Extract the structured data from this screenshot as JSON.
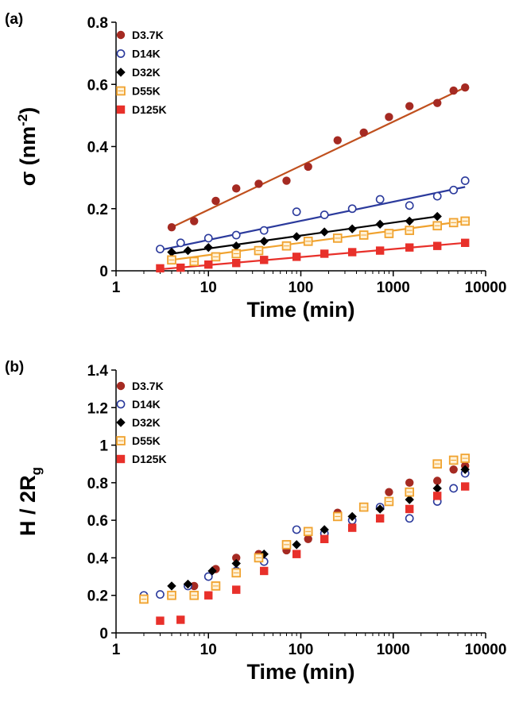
{
  "chart_data": [
    {
      "type": "scatter",
      "panel_label": "(a)",
      "xlabel": "Time (min)",
      "ylabel_prefix": "σ (nm",
      "ylabel_sup": "-2",
      "ylabel_suffix": ")",
      "xscale": "log",
      "xlim": [
        1,
        10000
      ],
      "ylim": [
        0,
        0.8
      ],
      "xticks": [
        "1",
        "10",
        "100",
        "1000",
        "10000"
      ],
      "yticks": [
        "0",
        "0.2",
        "0.4",
        "0.6",
        "0.8"
      ],
      "grid": false,
      "legend_position": "top-left",
      "series": [
        {
          "name": "D3.7K",
          "marker": "circle-filled",
          "color": "#a52a22",
          "line_color": "#c0501e",
          "x": [
            4,
            7,
            12,
            20,
            35,
            70,
            120,
            250,
            480,
            900,
            1500,
            3000,
            4500,
            6000
          ],
          "y": [
            0.14,
            0.16,
            0.225,
            0.265,
            0.28,
            0.29,
            0.335,
            0.42,
            0.445,
            0.495,
            0.53,
            0.54,
            0.58,
            0.59
          ],
          "fit_x": [
            4,
            6000
          ],
          "fit_y": [
            0.14,
            0.59
          ]
        },
        {
          "name": "D14K",
          "marker": "circle-open",
          "color": "#2b3a9c",
          "line_color": "#2b3a9c",
          "x": [
            3,
            5,
            10,
            20,
            40,
            90,
            180,
            360,
            720,
            1500,
            3000,
            4500,
            6000
          ],
          "y": [
            0.07,
            0.09,
            0.105,
            0.115,
            0.13,
            0.19,
            0.18,
            0.2,
            0.23,
            0.21,
            0.24,
            0.26,
            0.29
          ],
          "fit_x": [
            3,
            6000
          ],
          "fit_y": [
            0.067,
            0.27
          ]
        },
        {
          "name": "D32K",
          "marker": "diamond",
          "color": "#000000",
          "line_color": "#000000",
          "x": [
            4,
            6,
            10,
            20,
            40,
            90,
            180,
            360,
            720,
            1500,
            3000
          ],
          "y": [
            0.06,
            0.065,
            0.075,
            0.08,
            0.095,
            0.11,
            0.125,
            0.135,
            0.15,
            0.16,
            0.175
          ],
          "fit_x": [
            4,
            3000
          ],
          "fit_y": [
            0.055,
            0.175
          ]
        },
        {
          "name": "D55K",
          "marker": "square-open",
          "color": "#f0a22e",
          "line_color": "#f0a22e",
          "x": [
            4,
            7,
            12,
            20,
            35,
            70,
            120,
            250,
            480,
            900,
            1500,
            3000,
            4500,
            6000
          ],
          "y": [
            0.035,
            0.03,
            0.045,
            0.055,
            0.065,
            0.08,
            0.095,
            0.105,
            0.115,
            0.12,
            0.13,
            0.145,
            0.155,
            0.16
          ],
          "fit_x": [
            4,
            6000
          ],
          "fit_y": [
            0.035,
            0.16
          ]
        },
        {
          "name": "D125K",
          "marker": "square-filled",
          "color": "#e8302a",
          "line_color": "#e8302a",
          "x": [
            3,
            5,
            10,
            20,
            40,
            90,
            180,
            360,
            720,
            1500,
            3000,
            6000
          ],
          "y": [
            0.008,
            0.01,
            0.02,
            0.025,
            0.035,
            0.045,
            0.055,
            0.06,
            0.065,
            0.075,
            0.08,
            0.09
          ],
          "fit_x": [
            3,
            6000
          ],
          "fit_y": [
            0.005,
            0.09
          ]
        }
      ]
    },
    {
      "type": "scatter",
      "panel_label": "(b)",
      "xlabel": "Time (min)",
      "ylabel_prefix": "H / 2R",
      "ylabel_sub": "g",
      "xscale": "log",
      "xlim": [
        1,
        10000
      ],
      "ylim": [
        0,
        1.4
      ],
      "xticks": [
        "1",
        "10",
        "100",
        "1000",
        "10000"
      ],
      "yticks": [
        "0",
        "0.2",
        "0.4",
        "0.6",
        "0.8",
        "1",
        "1.2",
        "1.4"
      ],
      "grid": false,
      "legend_position": "top-left",
      "series": [
        {
          "name": "D3.7K",
          "marker": "circle-filled",
          "color": "#a52a22",
          "x": [
            7,
            12,
            20,
            35,
            70,
            120,
            250,
            480,
            900,
            1500,
            3000,
            4500,
            6000
          ],
          "y": [
            0.25,
            0.34,
            0.4,
            0.42,
            0.44,
            0.5,
            0.64,
            0.67,
            0.75,
            0.8,
            0.81,
            0.87,
            0.89
          ]
        },
        {
          "name": "D14K",
          "marker": "circle-open",
          "color": "#2b3a9c",
          "x": [
            2,
            3,
            6,
            10,
            20,
            40,
            90,
            180,
            360,
            720,
            1500,
            3000,
            4500,
            6000
          ],
          "y": [
            0.2,
            0.205,
            0.25,
            0.3,
            0.33,
            0.38,
            0.55,
            0.53,
            0.6,
            0.67,
            0.61,
            0.7,
            0.77,
            0.85
          ]
        },
        {
          "name": "D32K",
          "marker": "diamond",
          "color": "#000000",
          "x": [
            4,
            6,
            11,
            20,
            40,
            90,
            180,
            360,
            720,
            1500,
            3000,
            6000
          ],
          "y": [
            0.25,
            0.26,
            0.33,
            0.37,
            0.42,
            0.47,
            0.55,
            0.62,
            0.66,
            0.71,
            0.77,
            0.87
          ]
        },
        {
          "name": "D55K",
          "marker": "square-open",
          "color": "#f0a22e",
          "x": [
            2,
            4,
            7,
            12,
            20,
            35,
            70,
            120,
            250,
            480,
            900,
            1500,
            3000,
            4500,
            6000
          ],
          "y": [
            0.18,
            0.2,
            0.2,
            0.25,
            0.32,
            0.4,
            0.47,
            0.54,
            0.62,
            0.67,
            0.7,
            0.75,
            0.9,
            0.92,
            0.93
          ]
        },
        {
          "name": "D125K",
          "marker": "square-filled",
          "color": "#e8302a",
          "x": [
            3,
            5,
            10,
            20,
            40,
            90,
            180,
            360,
            720,
            1500,
            3000,
            6000
          ],
          "y": [
            0.065,
            0.07,
            0.2,
            0.23,
            0.33,
            0.42,
            0.5,
            0.56,
            0.61,
            0.66,
            0.73,
            0.78
          ]
        }
      ]
    }
  ]
}
